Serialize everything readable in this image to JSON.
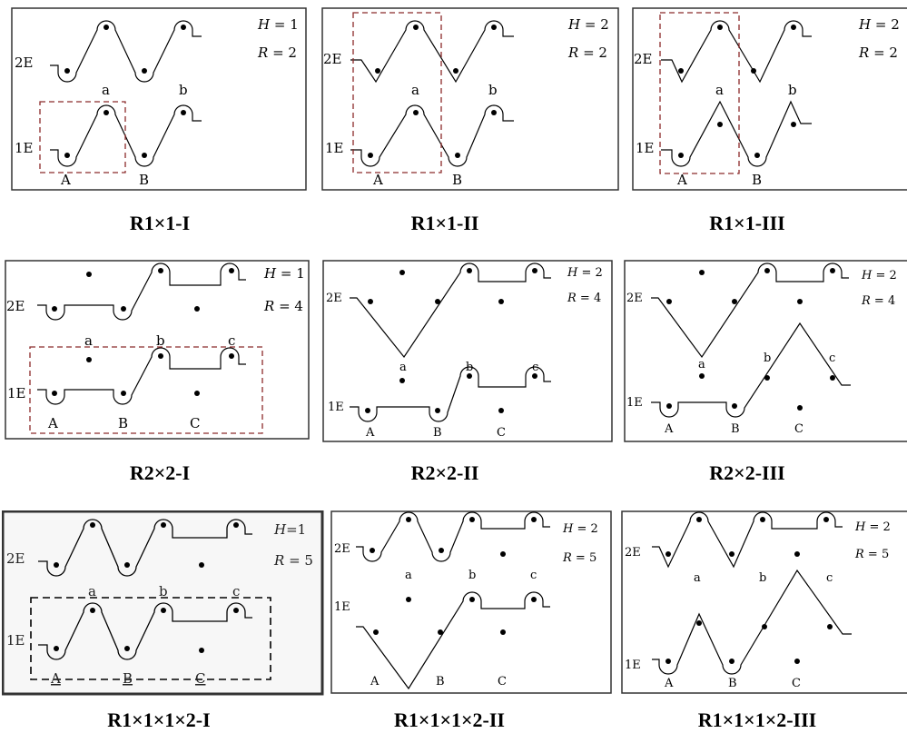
{
  "panels": [
    {
      "id": "p1",
      "caption": "R1×1-I",
      "h": "1",
      "r": "2",
      "row_top": "2E",
      "row_bot": "1E",
      "mid": [
        "a",
        "b"
      ],
      "bottom": [
        "A",
        "B"
      ]
    },
    {
      "id": "p2",
      "caption": "R1×1-II",
      "h": "2",
      "r": "2",
      "row_top": "2E",
      "row_bot": "1E",
      "mid": [
        "a",
        "b"
      ],
      "bottom": [
        "A",
        "B"
      ]
    },
    {
      "id": "p3",
      "caption": "R1×1-III",
      "h": "2",
      "r": "2",
      "row_top": "2E",
      "row_bot": "1E",
      "mid": [
        "a",
        "b"
      ],
      "bottom": [
        "A",
        "B"
      ]
    },
    {
      "id": "p4",
      "caption": "R2×2-I",
      "h": "1",
      "r": "4",
      "row_top": "2E",
      "row_bot": "1E",
      "mid": [
        "a",
        "b",
        "c"
      ],
      "bottom": [
        "A",
        "B",
        "C"
      ]
    },
    {
      "id": "p5",
      "caption": "R2×2-II",
      "h": "2",
      "r": "4",
      "row_top": "2E",
      "row_bot": "1E",
      "mid": [
        "a",
        "b",
        "c"
      ],
      "bottom": [
        "A",
        "B",
        "C"
      ]
    },
    {
      "id": "p6",
      "caption": "R2×2-III",
      "h": "2",
      "r": "4",
      "row_top": "2E",
      "row_bot": "1E",
      "mid": [
        "a",
        "b",
        "c"
      ],
      "bottom": [
        "A",
        "B",
        "C"
      ]
    },
    {
      "id": "p7",
      "caption": "R1×1×1×2-I",
      "h": "1",
      "r": "5",
      "row_top": "2E",
      "row_bot": "1E",
      "mid": [
        "a",
        "b",
        "c"
      ],
      "bottom": [
        "A",
        "B",
        "C"
      ]
    },
    {
      "id": "p8",
      "caption": "R1×1×1×2-II",
      "h": "2",
      "r": "5",
      "row_top": "2E",
      "row_bot": "1E",
      "mid": [
        "a",
        "b",
        "c"
      ],
      "bottom": [
        "A",
        "B",
        "C"
      ]
    },
    {
      "id": "p9",
      "caption": "R1×1×1×2-III",
      "h": "2",
      "r": "5",
      "row_top": "2E",
      "row_bot": "1E",
      "mid": [
        "a",
        "b",
        "c"
      ],
      "bottom": [
        "A",
        "B",
        "C"
      ]
    }
  ],
  "symbols": {
    "h": "H",
    "r": "R",
    "eq": " = "
  },
  "colors": {
    "dashed_box": "#8b2a2a",
    "line": "#000000",
    "frame": "#333333"
  }
}
